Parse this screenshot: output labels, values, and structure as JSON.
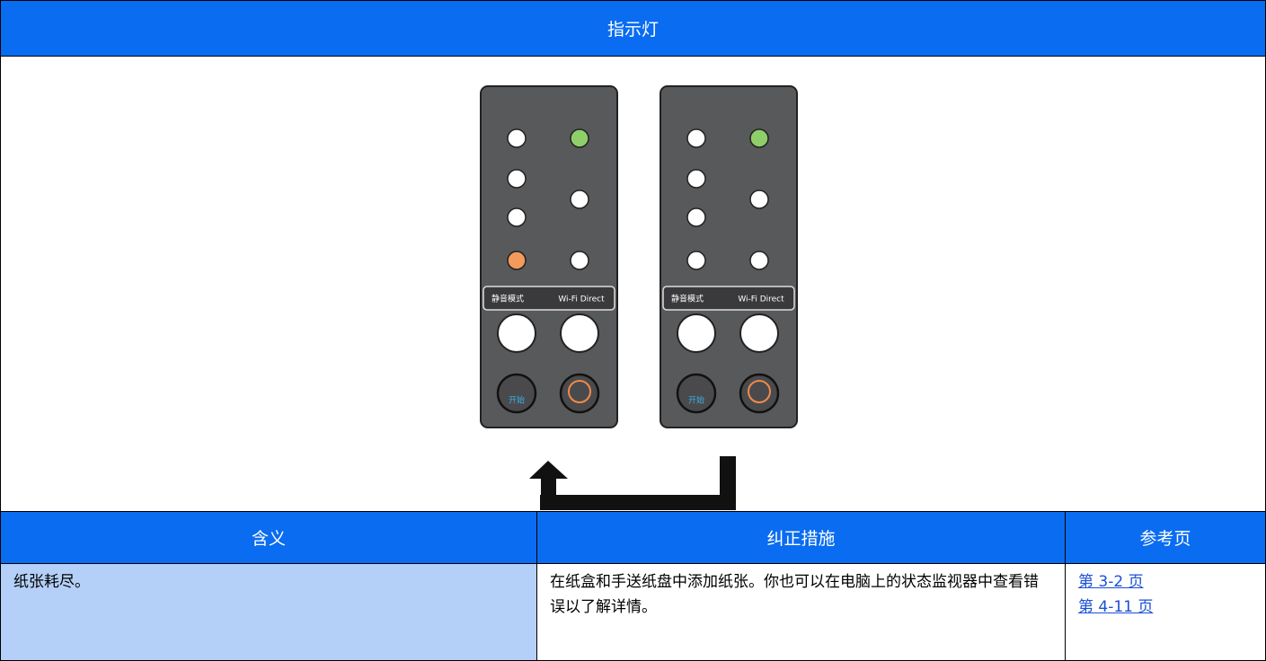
{
  "header": {
    "title": "指示灯"
  },
  "panels": [
    {
      "quiet_label": "静音模式",
      "wifi_label": "Wi-Fi Direct",
      "start_label": "开始"
    },
    {
      "quiet_label": "静音模式",
      "wifi_label": "Wi-Fi Direct",
      "start_label": "开始"
    }
  ],
  "table": {
    "columns": [
      "含义",
      "纠正措施",
      "参考页"
    ],
    "rows": [
      [
        "纸张耗尽。",
        "在纸盒和手送纸盘中添加纸张。你也可以在电脑上的状态监视器中查看错误以了解详情。",
        [
          "第 3-2 页",
          "第 4-11 页"
        ]
      ]
    ]
  }
}
